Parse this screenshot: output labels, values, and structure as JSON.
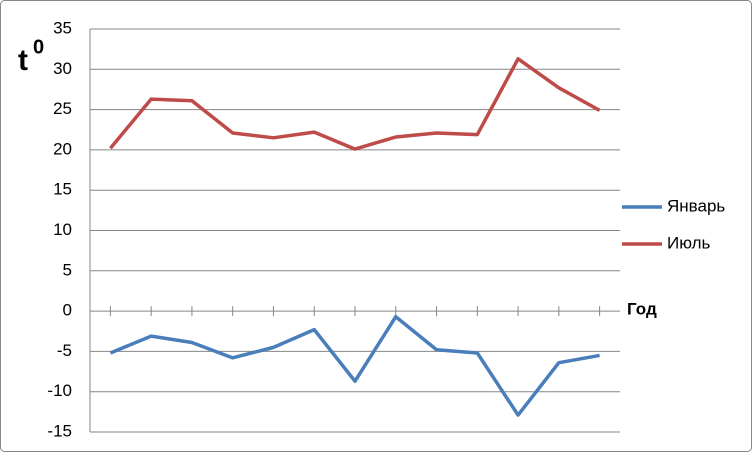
{
  "chart_data": {
    "type": "line",
    "y_label": "t",
    "y_label_superscript": "0",
    "x_label": "Год",
    "categories": [
      null,
      null,
      null,
      null,
      null,
      null,
      null,
      null,
      null,
      null,
      null,
      null,
      null
    ],
    "series": [
      {
        "name": "Январь",
        "color": "#4a7ebb",
        "values": [
          -5.2,
          -3.1,
          -3.9,
          -5.8,
          -4.5,
          -2.3,
          -8.7,
          -0.7,
          -4.8,
          -5.2,
          -12.9,
          -6.4,
          -5.5
        ]
      },
      {
        "name": "Июль",
        "color": "#be4b48",
        "values": [
          20.2,
          26.3,
          26.1,
          22.1,
          21.5,
          22.2,
          20.1,
          21.6,
          22.1,
          21.9,
          31.3,
          27.7,
          24.9
        ]
      }
    ],
    "ylim": [
      -15,
      35
    ],
    "yticks": [
      -15,
      -10,
      -5,
      0,
      5,
      10,
      15,
      20,
      25,
      30,
      35
    ],
    "grid": true,
    "legend": "right"
  }
}
